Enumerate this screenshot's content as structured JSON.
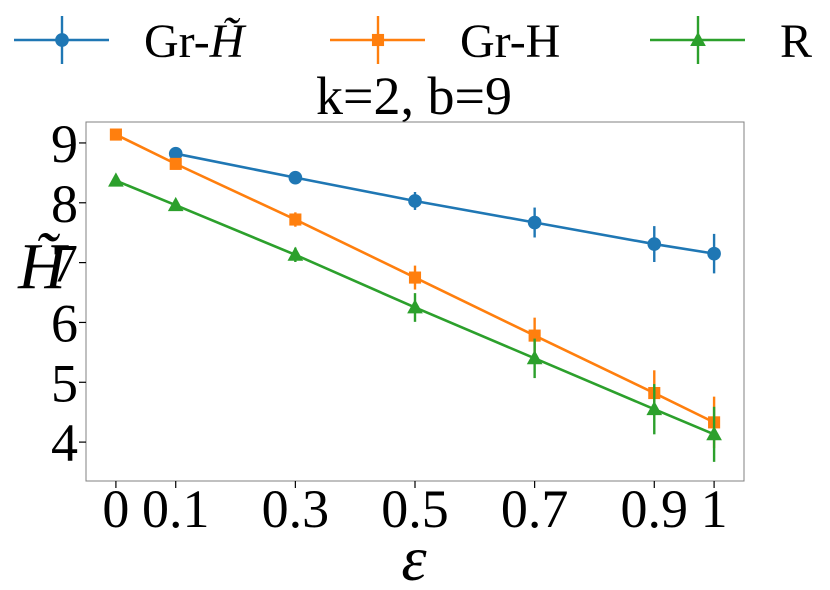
{
  "chart_data": {
    "type": "line",
    "title": "k=2, b=9",
    "xlabel": "ε",
    "ylabel": "H̃",
    "x": [
      0,
      0.1,
      0.3,
      0.5,
      0.7,
      0.9,
      1
    ],
    "x_tick_labels": [
      "0",
      "0.1",
      "0.3",
      "0.5",
      "0.7",
      "0.9",
      "1"
    ],
    "y_ticks": [
      4,
      5,
      6,
      7,
      8,
      9
    ],
    "y_tick_labels": [
      "4",
      "5",
      "6",
      "7",
      "8",
      "9"
    ],
    "xlim": [
      -0.05,
      1.05
    ],
    "ylim": [
      3.35,
      9.35
    ],
    "grid": false,
    "legend_position": "top",
    "series": [
      {
        "name_prefix": "Gr-",
        "name_symbol": "H̃",
        "color": "#1f77b4",
        "marker": "circle",
        "x": [
          0.1,
          0.3,
          0.5,
          0.7,
          0.9,
          1
        ],
        "values": [
          8.82,
          8.42,
          8.03,
          7.67,
          7.31,
          7.15
        ],
        "errors": [
          0.05,
          0.1,
          0.15,
          0.25,
          0.3,
          0.33
        ]
      },
      {
        "name_prefix": "Gr-H",
        "name_symbol": "",
        "color": "#ff7f0e",
        "marker": "square",
        "x": [
          0,
          0.1,
          0.3,
          0.5,
          0.7,
          0.9,
          1
        ],
        "values": [
          9.14,
          8.65,
          7.72,
          6.75,
          5.78,
          4.82,
          4.33
        ],
        "errors": [
          0.05,
          0.07,
          0.12,
          0.2,
          0.3,
          0.38,
          0.43
        ]
      },
      {
        "name_prefix": "R",
        "name_symbol": "",
        "color": "#2ca02c",
        "marker": "triangle",
        "x": [
          0,
          0.1,
          0.3,
          0.5,
          0.7,
          0.9,
          1
        ],
        "values": [
          8.37,
          7.96,
          7.13,
          6.25,
          5.4,
          4.55,
          4.13
        ],
        "errors": [
          0.05,
          0.06,
          0.12,
          0.24,
          0.33,
          0.42,
          0.46
        ]
      }
    ]
  }
}
